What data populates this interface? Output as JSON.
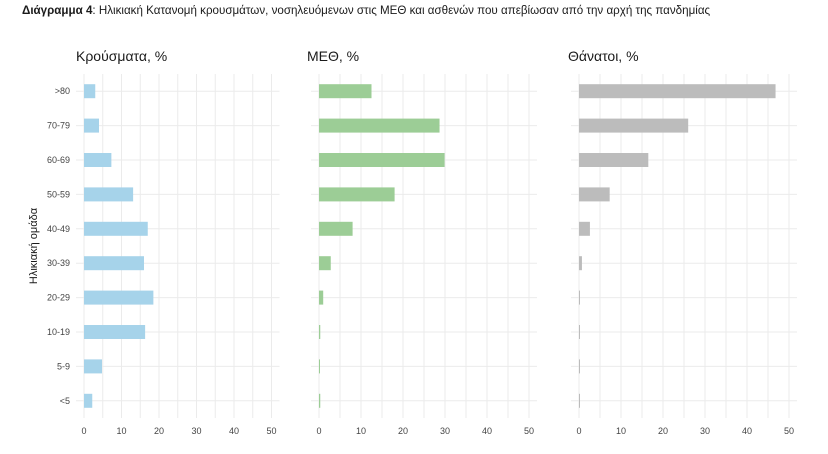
{
  "caption": {
    "label": "Διάγραμμα 4",
    "text": ": Ηλικιακή Κατανομή κρουσμάτων, νοσηλευόμενων στις ΜΕΘ και ασθενών που απεβίωσαν από την αρχή της πανδημίας"
  },
  "chart_data": {
    "type": "bar",
    "orientation": "horizontal",
    "ylabel": "Ηλικιακή ομάδα",
    "categories": [
      ">80",
      "70-79",
      "60-69",
      "50-59",
      "40-49",
      "30-39",
      "20-29",
      "10-19",
      "5-9",
      "<5"
    ],
    "xticks": [
      0,
      10,
      20,
      30,
      40,
      50
    ],
    "xlim": [
      0,
      50
    ],
    "grid": true,
    "legend": "none",
    "panels": [
      {
        "title": "Κρούσματα, %",
        "color": "#a6d3ea",
        "values": [
          3.0,
          4.0,
          7.3,
          13.1,
          17.0,
          16.0,
          18.5,
          16.3,
          4.8,
          2.2
        ]
      },
      {
        "title": "ΜΕΘ, %",
        "color": "#9ccd96",
        "values": [
          12.5,
          28.7,
          29.9,
          18.0,
          8.0,
          2.8,
          1.0,
          0.3,
          0.2,
          0.3
        ]
      },
      {
        "title": "Θάνατοι, %",
        "color": "#bcbcbc",
        "values": [
          46.8,
          26.0,
          16.5,
          7.3,
          2.6,
          0.7,
          0.2,
          0.1,
          0.05,
          0.1
        ]
      }
    ]
  }
}
